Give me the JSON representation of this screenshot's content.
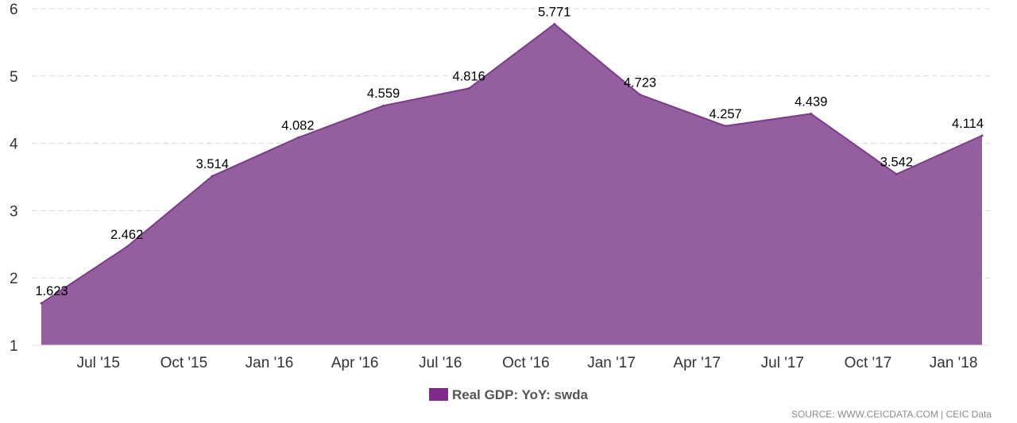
{
  "chart_data": {
    "type": "area",
    "x": [
      "May '15",
      "Aug '15",
      "Nov '15",
      "Feb '16",
      "May '16",
      "Aug '16",
      "Nov '16",
      "Feb '17",
      "May '17",
      "Aug '17",
      "Nov '17",
      "Feb '18"
    ],
    "series": [
      {
        "name": "Real GDP: YoY: swda",
        "values": [
          1.623,
          2.462,
          3.514,
          4.082,
          4.559,
          4.816,
          5.771,
          4.723,
          4.257,
          4.439,
          3.542,
          4.114
        ],
        "labels": [
          "1.623",
          "2.462",
          "3.514",
          "4.082",
          "4.559",
          "4.816",
          "5.771",
          "4.723",
          "4.257",
          "4.439",
          "3.542",
          "4.114"
        ]
      }
    ],
    "xticks": [
      "Jul '15",
      "Oct '15",
      "Jan '16",
      "Apr '16",
      "Jul '16",
      "Oct '16",
      "Jan '17",
      "Apr '17",
      "Jul '17",
      "Oct '17",
      "Jan '18"
    ],
    "yticks": [
      "1",
      "2",
      "3",
      "4",
      "5",
      "6"
    ],
    "ylim": [
      1,
      6
    ],
    "grid": true,
    "legend": "bottom-center",
    "colors": {
      "fill": "#955f9f",
      "line": "#7b3c89",
      "legend_swatch": "#7e2b89",
      "grid": "#d9d9d9"
    }
  },
  "legend": {
    "label": "Real GDP: YoY: swda"
  },
  "source": "SOURCE: WWW.CEICDATA.COM | CEIC Data"
}
